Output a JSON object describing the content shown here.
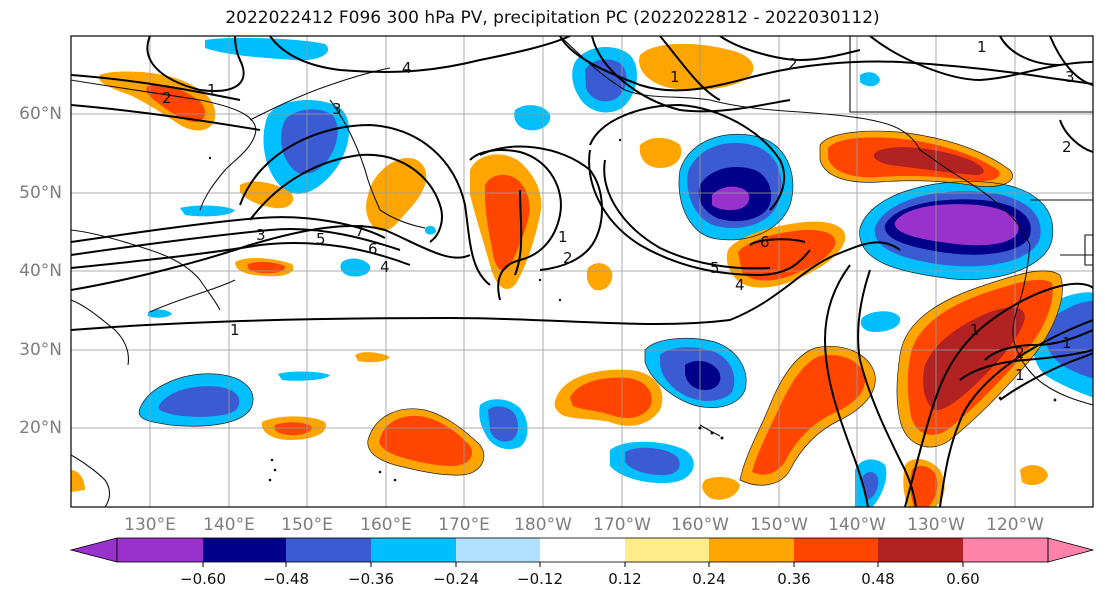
{
  "title": "2022022412 F096 300 hPa PV, precipitation PC (2022022812 - 2022030112)",
  "latitude_labels": [
    "60°N",
    "50°N",
    "40°N",
    "30°N",
    "20°N"
  ],
  "longitude_labels": [
    "130°E",
    "140°E",
    "150°E",
    "160°E",
    "170°E",
    "180°W",
    "170°W",
    "160°W",
    "150°W",
    "140°W",
    "130°W",
    "120°W"
  ],
  "colorbar": {
    "colors": [
      "#9932cc",
      "#00008b",
      "#3a5bd1",
      "#00bfff",
      "#b0e2ff",
      "#ffffff",
      "#ffec8b",
      "#ffa500",
      "#ff4500",
      "#b22222",
      "#ff82ab"
    ],
    "tick_labels": [
      "−0.60",
      "−0.48",
      "−0.36",
      "−0.24",
      "−0.12",
      "0.12",
      "0.24",
      "0.36",
      "0.48",
      "0.60"
    ]
  },
  "contour_labels": [
    "1",
    "2",
    "4",
    "2",
    "1",
    "3",
    "3",
    "5",
    "6",
    "7",
    "4",
    "1",
    "2",
    "6",
    "5",
    "4",
    "1",
    "1",
    "1",
    "2",
    "1",
    "2",
    "3",
    "1"
  ]
}
